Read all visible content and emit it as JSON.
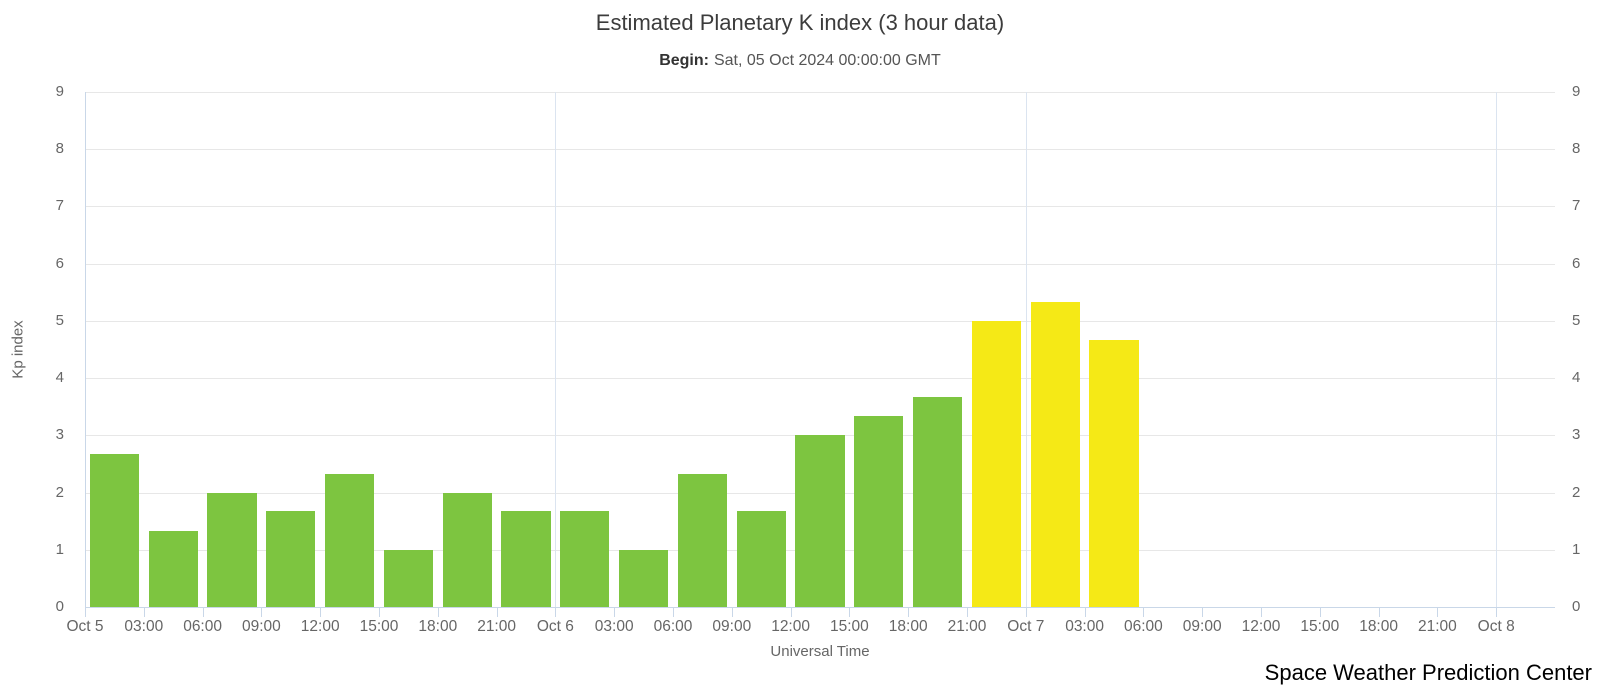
{
  "chart_data": {
    "type": "bar",
    "title": "Estimated Planetary K index (3 hour data)",
    "subtitle_label": "Begin:",
    "subtitle_value": "Sat, 05 Oct 2024 00:00:00 GMT",
    "xlabel": "Universal Time",
    "ylabel": "Kp index",
    "footer": "Space Weather Prediction Center",
    "ylim": [
      0,
      9
    ],
    "yticks": [
      0,
      1,
      2,
      3,
      4,
      5,
      6,
      7,
      8,
      9
    ],
    "x_total_bins": 25,
    "x_tick_labels": [
      "Oct 5",
      "03:00",
      "06:00",
      "09:00",
      "12:00",
      "15:00",
      "18:00",
      "21:00",
      "Oct 6",
      "03:00",
      "06:00",
      "09:00",
      "12:00",
      "15:00",
      "18:00",
      "21:00",
      "Oct 7",
      "03:00",
      "06:00",
      "09:00",
      "12:00",
      "15:00",
      "18:00",
      "21:00",
      "Oct 8"
    ],
    "day_gridline_bins": [
      8,
      16,
      24
    ],
    "categories": [
      "Oct 5 00:00",
      "Oct 5 03:00",
      "Oct 5 06:00",
      "Oct 5 09:00",
      "Oct 5 12:00",
      "Oct 5 15:00",
      "Oct 5 18:00",
      "Oct 5 21:00",
      "Oct 6 00:00",
      "Oct 6 03:00",
      "Oct 6 06:00",
      "Oct 6 09:00",
      "Oct 6 12:00",
      "Oct 6 15:00",
      "Oct 6 18:00",
      "Oct 6 21:00",
      "Oct 7 00:00",
      "Oct 7 03:00"
    ],
    "values": [
      2.67,
      1.33,
      2.0,
      1.67,
      2.33,
      1.0,
      2.0,
      1.67,
      1.67,
      1.0,
      2.33,
      1.67,
      3.0,
      3.33,
      3.67,
      5.0,
      5.33,
      4.67
    ],
    "bar_colors": [
      "green",
      "green",
      "green",
      "green",
      "green",
      "green",
      "green",
      "green",
      "green",
      "green",
      "green",
      "green",
      "green",
      "green",
      "green",
      "yellow",
      "yellow",
      "yellow"
    ],
    "palette": {
      "green": "#7DC540",
      "yellow": "#F5E916"
    },
    "grid_color": "#e7e7e7",
    "axis_color": "#c9d7e8",
    "legend": "off",
    "grid": "on"
  }
}
